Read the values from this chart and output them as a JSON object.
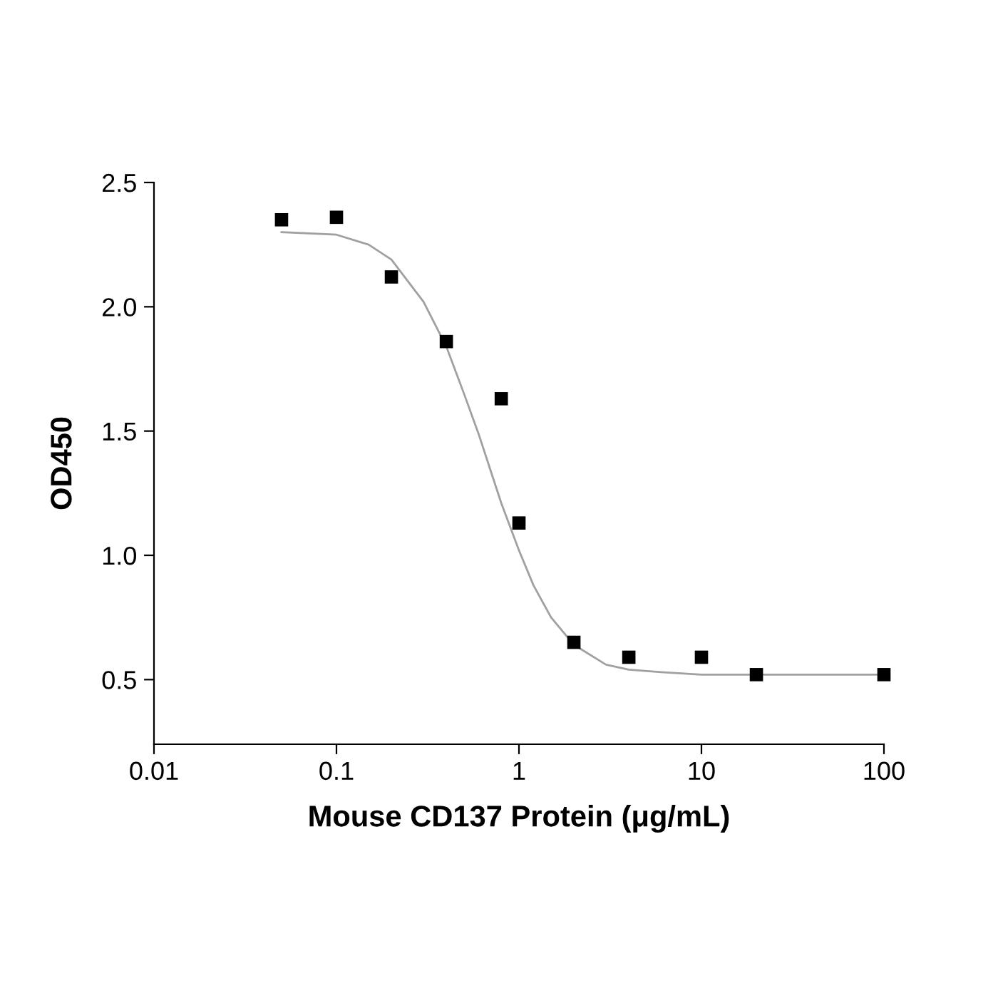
{
  "chart_data": {
    "type": "scatter",
    "xlabel": "Mouse CD137 Protein (μg/mL)",
    "ylabel": "OD450",
    "log": "x",
    "grid": false,
    "xlim": [
      0.01,
      100
    ],
    "xticks": [
      0.01,
      0.1,
      1,
      10,
      100
    ],
    "ylim": [
      0.24,
      2.5
    ],
    "yticks": [
      {
        "value": 0.5,
        "label": "0.5"
      },
      {
        "value": 1.0,
        "label": "1.0"
      },
      {
        "value": 1.5,
        "label": "1.5"
      },
      {
        "value": 2.0,
        "label": "2.0"
      },
      {
        "value": 2.5,
        "label": "2.5"
      }
    ],
    "series": [
      {
        "marker": "square",
        "color": "#000000",
        "x": [
          0.05,
          0.1,
          0.2,
          0.4,
          0.8,
          1,
          2,
          4,
          10,
          20,
          100
        ],
        "values": [
          2.35,
          2.36,
          2.12,
          1.86,
          1.63,
          1.13,
          0.65,
          0.59,
          0.59,
          0.52,
          0.52
        ]
      },
      {
        "type": "line",
        "color": "#a0a0a0",
        "x": [
          0.05,
          0.1,
          0.15,
          0.2,
          0.3,
          0.4,
          0.5,
          0.6,
          0.7,
          0.8,
          1.0,
          1.2,
          1.5,
          2,
          3,
          4,
          6,
          10,
          100
        ],
        "values": [
          2.3,
          2.29,
          2.25,
          2.19,
          2.02,
          1.84,
          1.65,
          1.49,
          1.34,
          1.21,
          1.02,
          0.88,
          0.75,
          0.64,
          0.56,
          0.54,
          0.53,
          0.52,
          0.52
        ]
      }
    ]
  }
}
